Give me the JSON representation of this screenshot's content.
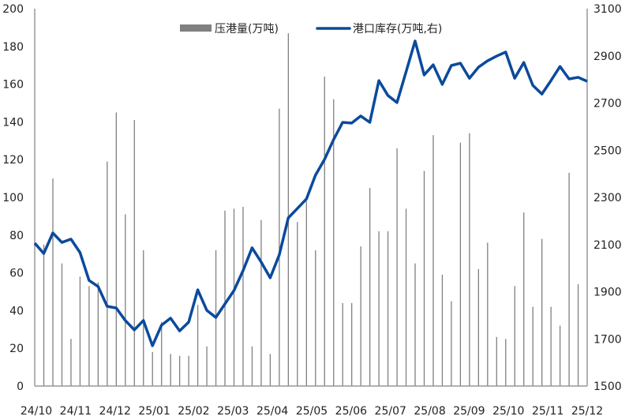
{
  "chart_data": {
    "type": "bar+line",
    "title": "",
    "x_tick_labels": [
      "24/10",
      "24/11",
      "24/12",
      "25/01",
      "25/02",
      "25/03",
      "25/04",
      "25/05",
      "25/06",
      "25/07",
      "25/08",
      "25/09",
      "25/10",
      "25/11",
      "25/12"
    ],
    "y_left": {
      "range": [
        0,
        200
      ],
      "ticks": [
        0,
        20,
        40,
        60,
        80,
        100,
        120,
        140,
        160,
        180,
        200
      ]
    },
    "y_right": {
      "range": [
        1500,
        3100
      ],
      "ticks": [
        1500,
        1700,
        1900,
        2100,
        2300,
        2500,
        2700,
        2900,
        3100
      ]
    },
    "grid": false,
    "legend_placement": "top",
    "series": [
      {
        "name": "压港量(万吨)",
        "type": "bar",
        "axis": "left",
        "color": "#808080",
        "values": [
          null,
          75,
          110,
          65,
          25,
          58,
          53,
          55,
          119,
          145,
          91,
          141,
          72,
          18,
          34,
          17,
          16,
          16,
          43,
          21,
          72,
          93,
          94,
          95,
          21,
          88,
          17,
          147,
          187,
          87,
          98,
          72,
          164,
          152,
          44,
          44,
          74,
          105,
          82,
          82,
          126,
          94,
          65,
          114,
          133,
          59,
          45,
          129,
          134,
          62,
          76,
          26,
          25,
          53,
          92,
          42,
          78,
          42,
          32,
          113,
          54,
          null
        ]
      },
      {
        "name": "港口库存(万吨,右)",
        "type": "line",
        "axis": "right",
        "color": "#0B4A9C",
        "values": [
          2106,
          2062,
          2149,
          2109,
          2123,
          2066,
          1948,
          1922,
          1838,
          1831,
          1778,
          1738,
          1778,
          1671,
          1758,
          1788,
          1734,
          1771,
          1908,
          1821,
          1791,
          1848,
          1905,
          1989,
          2086,
          2026,
          1959,
          2056,
          2213,
          2253,
          2293,
          2394,
          2461,
          2545,
          2618,
          2615,
          2645,
          2618,
          2795,
          2732,
          2702,
          2832,
          2963,
          2819,
          2862,
          2779,
          2859,
          2869,
          2805,
          2852,
          2879,
          2899,
          2916,
          2805,
          2872,
          2775,
          2738,
          2795,
          2855,
          2802,
          2809,
          2792
        ]
      }
    ]
  }
}
